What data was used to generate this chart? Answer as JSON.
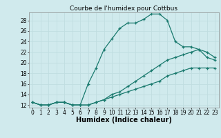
{
  "title": "Courbe de l'humidex pour Cottbus",
  "xlabel": "Humidex (Indice chaleur)",
  "xlim": [
    -0.5,
    23.5
  ],
  "ylim": [
    11.5,
    29.5
  ],
  "xticks": [
    0,
    1,
    2,
    3,
    4,
    5,
    6,
    7,
    8,
    9,
    10,
    11,
    12,
    13,
    14,
    15,
    16,
    17,
    18,
    19,
    20,
    21,
    22,
    23
  ],
  "yticks": [
    12,
    14,
    16,
    18,
    20,
    22,
    24,
    26,
    28
  ],
  "bg_color": "#d0eaed",
  "line_color": "#1a7a6e",
  "grid_color": "#c0dde0",
  "line1_x": [
    0,
    1,
    2,
    3,
    4,
    5,
    6,
    7,
    8,
    9,
    10,
    11,
    12,
    13,
    14,
    15,
    16,
    17,
    18,
    19,
    20,
    21,
    22,
    23
  ],
  "line1_y": [
    12.5,
    12,
    12,
    12.5,
    12.5,
    12,
    12,
    16,
    19,
    22.5,
    24.5,
    26.5,
    27.5,
    27.5,
    28.2,
    29.2,
    29.2,
    28,
    24,
    23,
    23,
    22.5,
    21,
    20.5
  ],
  "line2_x": [
    0,
    1,
    2,
    3,
    4,
    5,
    6,
    7,
    8,
    9,
    10,
    11,
    12,
    13,
    14,
    15,
    16,
    17,
    18,
    19,
    20,
    21,
    22,
    23
  ],
  "line2_y": [
    12.5,
    12,
    12,
    12.5,
    12.5,
    12,
    12,
    12,
    12.5,
    13,
    13.5,
    14,
    14.5,
    15,
    15.5,
    16,
    16.5,
    17.5,
    18,
    18.5,
    19,
    19,
    19,
    19
  ],
  "line3_x": [
    0,
    1,
    2,
    3,
    4,
    5,
    6,
    7,
    8,
    9,
    10,
    11,
    12,
    13,
    14,
    15,
    16,
    17,
    18,
    19,
    20,
    21,
    22,
    23
  ],
  "line3_y": [
    12.5,
    12,
    12,
    12.5,
    12.5,
    12,
    12,
    12,
    12.5,
    13,
    14,
    14.5,
    15.5,
    16.5,
    17.5,
    18.5,
    19.5,
    20.5,
    21,
    21.5,
    22,
    22.5,
    22,
    21
  ],
  "title_fontsize": 6.5,
  "tick_fontsize": 5.5,
  "xlabel_fontsize": 7
}
